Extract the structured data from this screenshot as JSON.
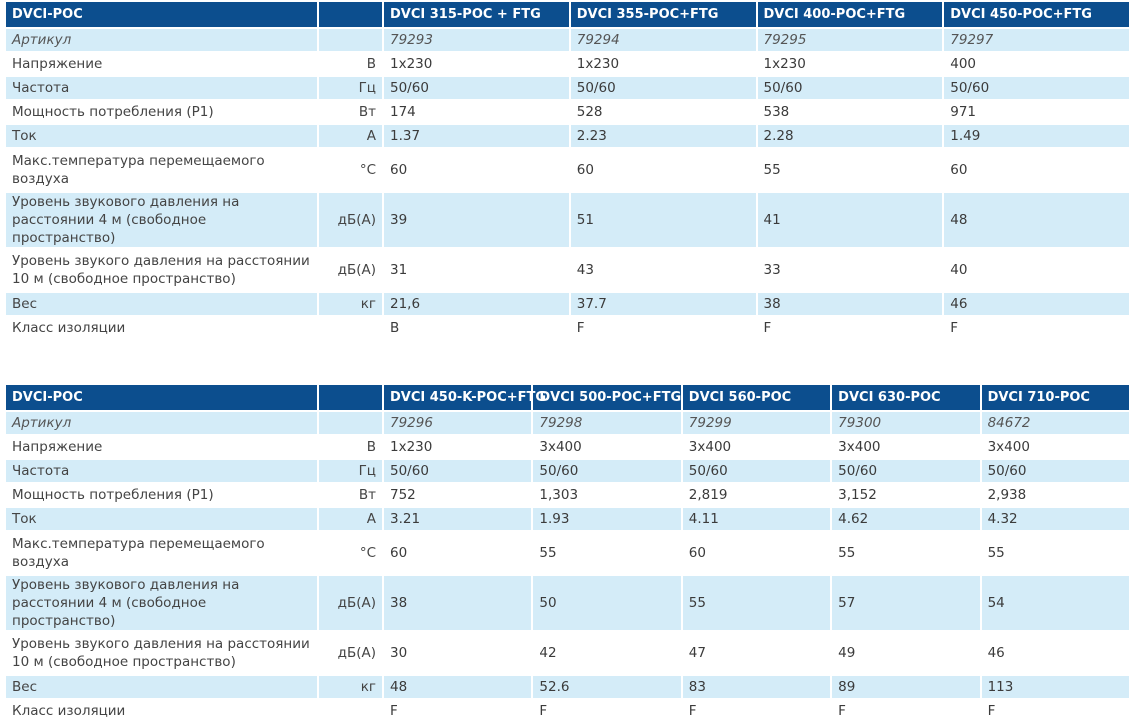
{
  "tables": [
    {
      "header": "DVCI-POC",
      "models": [
        "DVCI 315-POC + FTG",
        "DVCI 355-POC+FTG",
        "DVCI 400-POC+FTG",
        "DVCI 450-POC+FTG"
      ],
      "rows": [
        {
          "label": "Артикул",
          "unit": "",
          "values": [
            "79293",
            "79294",
            "79295",
            "79297"
          ]
        },
        {
          "label": "Напряжение",
          "unit": "В",
          "values": [
            "1x230",
            "1x230",
            "1x230",
            "400"
          ]
        },
        {
          "label": "Частота",
          "unit": "Гц",
          "values": [
            "50/60",
            "50/60",
            "50/60",
            "50/60"
          ]
        },
        {
          "label": "Мощность потребления (P1)",
          "unit": "Вт",
          "values": [
            "174",
            "528",
            "538",
            "971"
          ]
        },
        {
          "label": "Ток",
          "unit": "А",
          "values": [
            "1.37",
            "2.23",
            "2.28",
            "1.49"
          ]
        },
        {
          "label": "Макс.температура перемещаемого воздуха",
          "unit": "°С",
          "values": [
            "60",
            "60",
            "55",
            "60"
          ]
        },
        {
          "label": "Уровень звукового давления на расстоянии 4 м (свободное пространство)",
          "unit": "дБ(А)",
          "values": [
            "39",
            "51",
            "41",
            "48"
          ]
        },
        {
          "label": "Уровень звукого давления на расстоянии 10 м (свободное пространство)",
          "unit": "дБ(А)",
          "values": [
            "31",
            "43",
            "33",
            "40"
          ]
        },
        {
          "label": "Вес",
          "unit": "кг",
          "values": [
            "21,6",
            "37.7",
            "38",
            "46"
          ]
        },
        {
          "label": "Класс изоляции",
          "unit": "",
          "values": [
            "B",
            "F",
            "F",
            "F"
          ]
        }
      ]
    },
    {
      "header": "DVCI-POC",
      "models": [
        "DVCI 450-K-POC+FTG",
        "DVCI 500-POC+FTG",
        "DVCI 560-POC",
        "DVCI 630-POC",
        "DVCI 710-POC"
      ],
      "rows": [
        {
          "label": "Артикул",
          "unit": "",
          "values": [
            "79296",
            "79298",
            "79299",
            "79300",
            "84672"
          ]
        },
        {
          "label": "Напряжение",
          "unit": "В",
          "values": [
            "1x230",
            "3x400",
            "3x400",
            "3x400",
            "3x400"
          ]
        },
        {
          "label": "Частота",
          "unit": "Гц",
          "values": [
            "50/60",
            "50/60",
            "50/60",
            "50/60",
            "50/60"
          ]
        },
        {
          "label": "Мощность потребления (P1)",
          "unit": "Вт",
          "values": [
            "752",
            "1,303",
            "2,819",
            "3,152",
            "2,938"
          ]
        },
        {
          "label": "Ток",
          "unit": "А",
          "values": [
            "3.21",
            "1.93",
            "4.11",
            "4.62",
            "4.32"
          ]
        },
        {
          "label": "Макс.температура перемещаемого воздуха",
          "unit": "°С",
          "values": [
            "60",
            "55",
            "60",
            "55",
            "55"
          ]
        },
        {
          "label": "Уровень звукового давления на расстоянии 4 м (свободное пространство)",
          "unit": "дБ(А)",
          "values": [
            "38",
            "50",
            "55",
            "57",
            "54"
          ]
        },
        {
          "label": "Уровень звукого давления на расстоянии 10 м (свободное пространство)",
          "unit": "дБ(А)",
          "values": [
            "30",
            "42",
            "47",
            "49",
            "46"
          ]
        },
        {
          "label": "Вес",
          "unit": "кг",
          "values": [
            "48",
            "52.6",
            "83",
            "89",
            "113"
          ]
        },
        {
          "label": "Класс изоляции",
          "unit": "",
          "values": [
            "F",
            "F",
            "F",
            "F",
            "F"
          ]
        }
      ]
    }
  ]
}
